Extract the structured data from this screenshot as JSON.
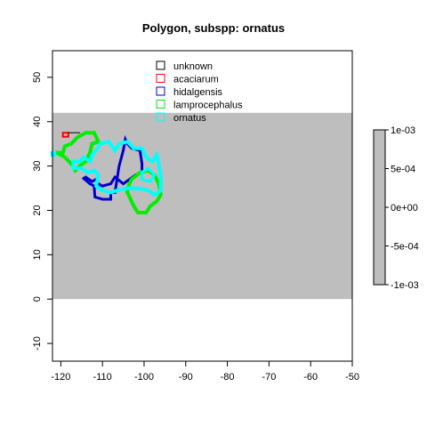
{
  "chart_data": {
    "type": "map",
    "title": "Polygon, subspp: ornatus",
    "xlim": [
      -122,
      -50
    ],
    "ylim": [
      -14,
      56
    ],
    "x_ticks": [
      -120,
      -110,
      -100,
      -90,
      -80,
      -70,
      -60,
      -50
    ],
    "y_ticks": [
      -10,
      0,
      10,
      20,
      30,
      40,
      50
    ],
    "raster_extent": {
      "x": [
        -122,
        -50
      ],
      "y": [
        0,
        42
      ]
    },
    "raster_color": "#bebebe",
    "legend": [
      {
        "name": "unknown",
        "color": "#000000"
      },
      {
        "name": "acaciarum",
        "color": "#ff0000"
      },
      {
        "name": "hidalgensis",
        "color": "#0000cd"
      },
      {
        "name": "lamprocephalus",
        "color": "#00ee00"
      },
      {
        "name": "ornatus",
        "color": "#00ffff"
      }
    ],
    "colorbar": {
      "ticks": [
        "1e-03",
        "5e-04",
        "0e+00",
        "-5e-04",
        "-1e-03"
      ],
      "color": "#bebebe"
    },
    "polygons": [
      {
        "series": "acaciarum",
        "color": "#ff0000",
        "width": 2,
        "points": [
          [
            -119.5,
            37.5
          ],
          [
            -118.2,
            37.5
          ],
          [
            -118.2,
            36.6
          ],
          [
            -119.5,
            36.6
          ],
          [
            -119.5,
            37.5
          ]
        ]
      },
      {
        "series": "unknown",
        "color": "#000000",
        "width": 1,
        "points": [
          [
            -118.2,
            37.5
          ],
          [
            -115.5,
            37.5
          ]
        ]
      },
      {
        "series": "hidalgensis",
        "color": "#0000cd",
        "width": 3,
        "points": [
          [
            -114.5,
            27.2
          ],
          [
            -113,
            26
          ],
          [
            -112,
            25.5
          ],
          [
            -111.8,
            23
          ],
          [
            -110,
            22.5
          ],
          [
            -108,
            22.5
          ],
          [
            -108,
            24
          ],
          [
            -107,
            24
          ],
          [
            -106,
            30
          ],
          [
            -105,
            33.5
          ],
          [
            -104.5,
            36
          ],
          [
            -104,
            35
          ],
          [
            -103,
            34
          ],
          [
            -101,
            33.5
          ],
          [
            -100.5,
            30.5
          ],
          [
            -100.5,
            28.5
          ],
          [
            -102,
            28
          ],
          [
            -103.5,
            27
          ],
          [
            -105,
            26
          ],
          [
            -107,
            27.5
          ],
          [
            -108,
            26
          ],
          [
            -110,
            25.5
          ],
          [
            -111,
            26
          ],
          [
            -111.5,
            27
          ],
          [
            -112.5,
            26.5
          ],
          [
            -114,
            27.5
          ],
          [
            -114.5,
            27.2
          ]
        ]
      },
      {
        "series": "lamprocephalus",
        "color": "#00ee00",
        "width": 4,
        "points": [
          [
            -121,
            33
          ],
          [
            -119.5,
            33
          ],
          [
            -119,
            34.5
          ],
          [
            -117.5,
            35
          ],
          [
            -116,
            36.5
          ],
          [
            -114,
            37.5
          ],
          [
            -112,
            37.5
          ],
          [
            -111,
            35.5
          ],
          [
            -112.5,
            35
          ],
          [
            -113,
            33
          ],
          [
            -114,
            31
          ],
          [
            -115.5,
            30
          ],
          [
            -116.5,
            29
          ],
          [
            -117,
            30
          ],
          [
            -118,
            31
          ],
          [
            -119,
            32
          ],
          [
            -121,
            33
          ]
        ]
      },
      {
        "series": "lamprocephalus",
        "color": "#00ee00",
        "width": 4,
        "points": [
          [
            -104,
            24
          ],
          [
            -102.5,
            21
          ],
          [
            -101.5,
            19.5
          ],
          [
            -99.5,
            19.5
          ],
          [
            -98.5,
            21
          ],
          [
            -97,
            22
          ],
          [
            -96,
            23.5
          ],
          [
            -96.5,
            26
          ],
          [
            -97.5,
            28
          ],
          [
            -99,
            29
          ],
          [
            -101,
            28.5
          ],
          [
            -103,
            27
          ],
          [
            -104,
            25
          ],
          [
            -104,
            24
          ]
        ]
      },
      {
        "series": "ornatus",
        "color": "#00ffff",
        "width": 4,
        "points": [
          [
            -122,
            33
          ],
          [
            -121.5,
            33
          ],
          [
            -121.5,
            32.5
          ],
          [
            -122,
            32.5
          ],
          [
            -122,
            33
          ]
        ]
      },
      {
        "series": "ornatus",
        "color": "#00ffff",
        "width": 4,
        "points": [
          [
            -117,
            31
          ],
          [
            -115.5,
            31
          ],
          [
            -114.5,
            32
          ],
          [
            -113,
            31
          ],
          [
            -112.5,
            32.5
          ],
          [
            -111.5,
            33.5
          ],
          [
            -110.5,
            35
          ],
          [
            -108.5,
            35.5
          ],
          [
            -107,
            33.5
          ],
          [
            -106,
            35
          ],
          [
            -104,
            35.5
          ],
          [
            -102.5,
            34
          ],
          [
            -100.5,
            34
          ],
          [
            -99.5,
            32
          ],
          [
            -98,
            31
          ],
          [
            -97,
            32.5
          ],
          [
            -96.5,
            30.5
          ],
          [
            -96,
            27.5
          ],
          [
            -96,
            24.5
          ],
          [
            -97.5,
            23.5
          ],
          [
            -99,
            24.5
          ],
          [
            -101.5,
            25
          ],
          [
            -104,
            25
          ],
          [
            -106.5,
            24.5
          ],
          [
            -108,
            24
          ],
          [
            -110,
            24.5
          ],
          [
            -111.5,
            25.5
          ],
          [
            -111,
            28
          ],
          [
            -112,
            29
          ],
          [
            -113.5,
            28.5
          ],
          [
            -115,
            29.5
          ],
          [
            -117,
            29.5
          ],
          [
            -117,
            31
          ]
        ]
      },
      {
        "series": "ornatus",
        "color": "#00ffff",
        "width": 3,
        "points": [
          [
            -100.5,
            28.5
          ],
          [
            -99,
            29.5
          ],
          [
            -97.5,
            28
          ],
          [
            -98.5,
            26.5
          ],
          [
            -100.5,
            27
          ],
          [
            -100.5,
            28.5
          ]
        ]
      }
    ]
  }
}
